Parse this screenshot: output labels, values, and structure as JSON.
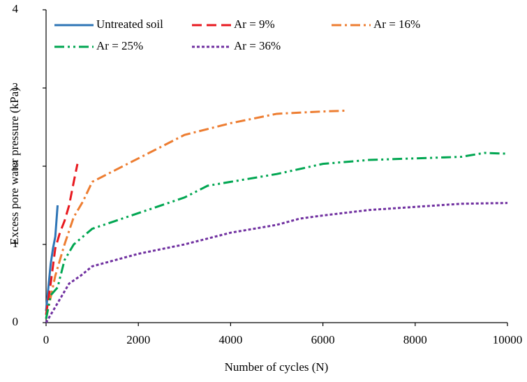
{
  "chart_data": {
    "type": "line",
    "x_label": "Number of cycles (N)",
    "y_label": "Excess pore water pressure (kPa)",
    "xlim": [
      0,
      10000
    ],
    "xticks": [
      0,
      2000,
      4000,
      6000,
      8000,
      10000
    ],
    "ylim": [
      0,
      4
    ],
    "yticks": [
      0,
      1,
      2,
      3,
      4
    ],
    "grid": false,
    "legend": "top-left",
    "series": [
      {
        "name": "Untreated soil",
        "color": "#2e75b6",
        "style": "solid",
        "x": [
          0,
          50,
          100,
          150,
          200,
          250
        ],
        "values": [
          0.15,
          0.45,
          0.75,
          0.95,
          1.1,
          1.5
        ]
      },
      {
        "name": "Ar = 9%",
        "color": "#e8191f",
        "style": "dashed",
        "x": [
          0,
          100,
          200,
          300,
          400,
          500,
          600,
          680
        ],
        "values": [
          0.1,
          0.5,
          0.95,
          1.15,
          1.3,
          1.5,
          1.8,
          2.03
        ]
      },
      {
        "name": "Ar = 16%",
        "color": "#ed7d31",
        "style": "dashdot",
        "x": [
          0,
          200,
          400,
          600,
          800,
          1000,
          2000,
          3000,
          4000,
          5000,
          6000,
          6500
        ],
        "values": [
          0.05,
          0.6,
          1.0,
          1.35,
          1.55,
          1.8,
          2.1,
          2.4,
          2.55,
          2.67,
          2.7,
          2.71
        ]
      },
      {
        "name": "Ar = 25%",
        "color": "#00a651",
        "style": "dashdotdot",
        "x": [
          0,
          100,
          250,
          400,
          600,
          900,
          1000,
          2000,
          3000,
          3500,
          4000,
          5000,
          6000,
          7000,
          8000,
          9000,
          9500,
          10000
        ],
        "values": [
          0.05,
          0.35,
          0.45,
          0.8,
          1.0,
          1.15,
          1.2,
          1.4,
          1.6,
          1.75,
          1.8,
          1.9,
          2.03,
          2.08,
          2.1,
          2.12,
          2.17,
          2.16
        ]
      },
      {
        "name": "Ar = 36%",
        "color": "#7030a0",
        "style": "dotted",
        "x": [
          0,
          250,
          500,
          750,
          1000,
          2000,
          3000,
          4000,
          4500,
          5000,
          5500,
          6000,
          7000,
          8000,
          9000,
          10000
        ],
        "values": [
          0,
          0.25,
          0.5,
          0.6,
          0.72,
          0.88,
          1.0,
          1.15,
          1.2,
          1.25,
          1.33,
          1.37,
          1.44,
          1.48,
          1.52,
          1.53
        ]
      }
    ]
  }
}
